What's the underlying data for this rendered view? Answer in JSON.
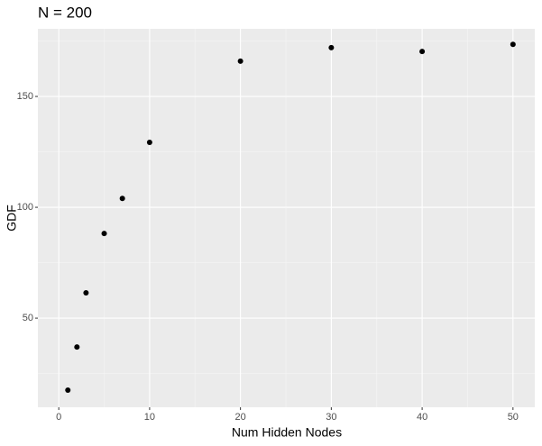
{
  "chart_data": {
    "type": "scatter",
    "title": "N = 200",
    "x_label": "Num Hidden Nodes",
    "y_label": "GDF",
    "x": [
      1,
      2,
      3,
      5,
      7,
      10,
      20,
      30,
      40,
      50
    ],
    "values": [
      17.5,
      37,
      61.4,
      88.2,
      104,
      129.3,
      165.9,
      172,
      170.3,
      173.5
    ],
    "color": "#000000",
    "xlim": [
      -2.3,
      52.4
    ],
    "xticks": [
      0,
      10,
      20,
      30,
      40,
      50
    ],
    "ylim": [
      9.8,
      180.5
    ],
    "yticks": [
      50,
      100,
      150
    ],
    "grid": true
  }
}
